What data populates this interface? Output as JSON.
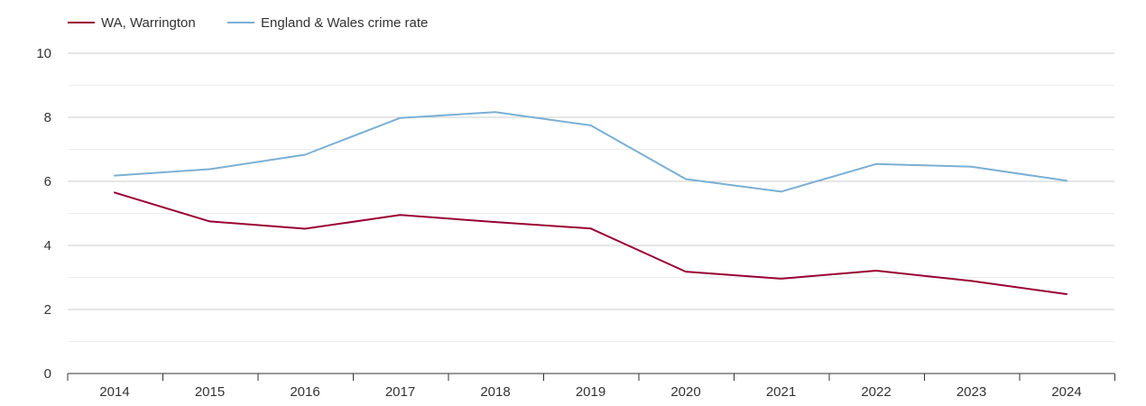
{
  "chart_data": {
    "type": "line",
    "title": "",
    "xlabel": "",
    "ylabel": "",
    "x": [
      "2014",
      "2015",
      "2016",
      "2017",
      "2018",
      "2019",
      "2020",
      "2021",
      "2022",
      "2023",
      "2024"
    ],
    "ylim": [
      0,
      10
    ],
    "yticks": [
      "0",
      "2",
      "4",
      "6",
      "8",
      "10"
    ],
    "grid": true,
    "legend_position": "top-left",
    "series": [
      {
        "name": "WA, Warrington",
        "color": "#990033",
        "values": [
          5.65,
          4.75,
          4.52,
          4.95,
          4.73,
          4.53,
          3.18,
          2.96,
          3.21,
          2.89,
          2.48
        ]
      },
      {
        "name": "England & Wales crime rate",
        "color": "#7bafd4",
        "values": [
          6.18,
          6.38,
          6.83,
          7.98,
          8.16,
          7.75,
          6.07,
          5.68,
          6.54,
          6.46,
          6.02
        ]
      }
    ]
  }
}
